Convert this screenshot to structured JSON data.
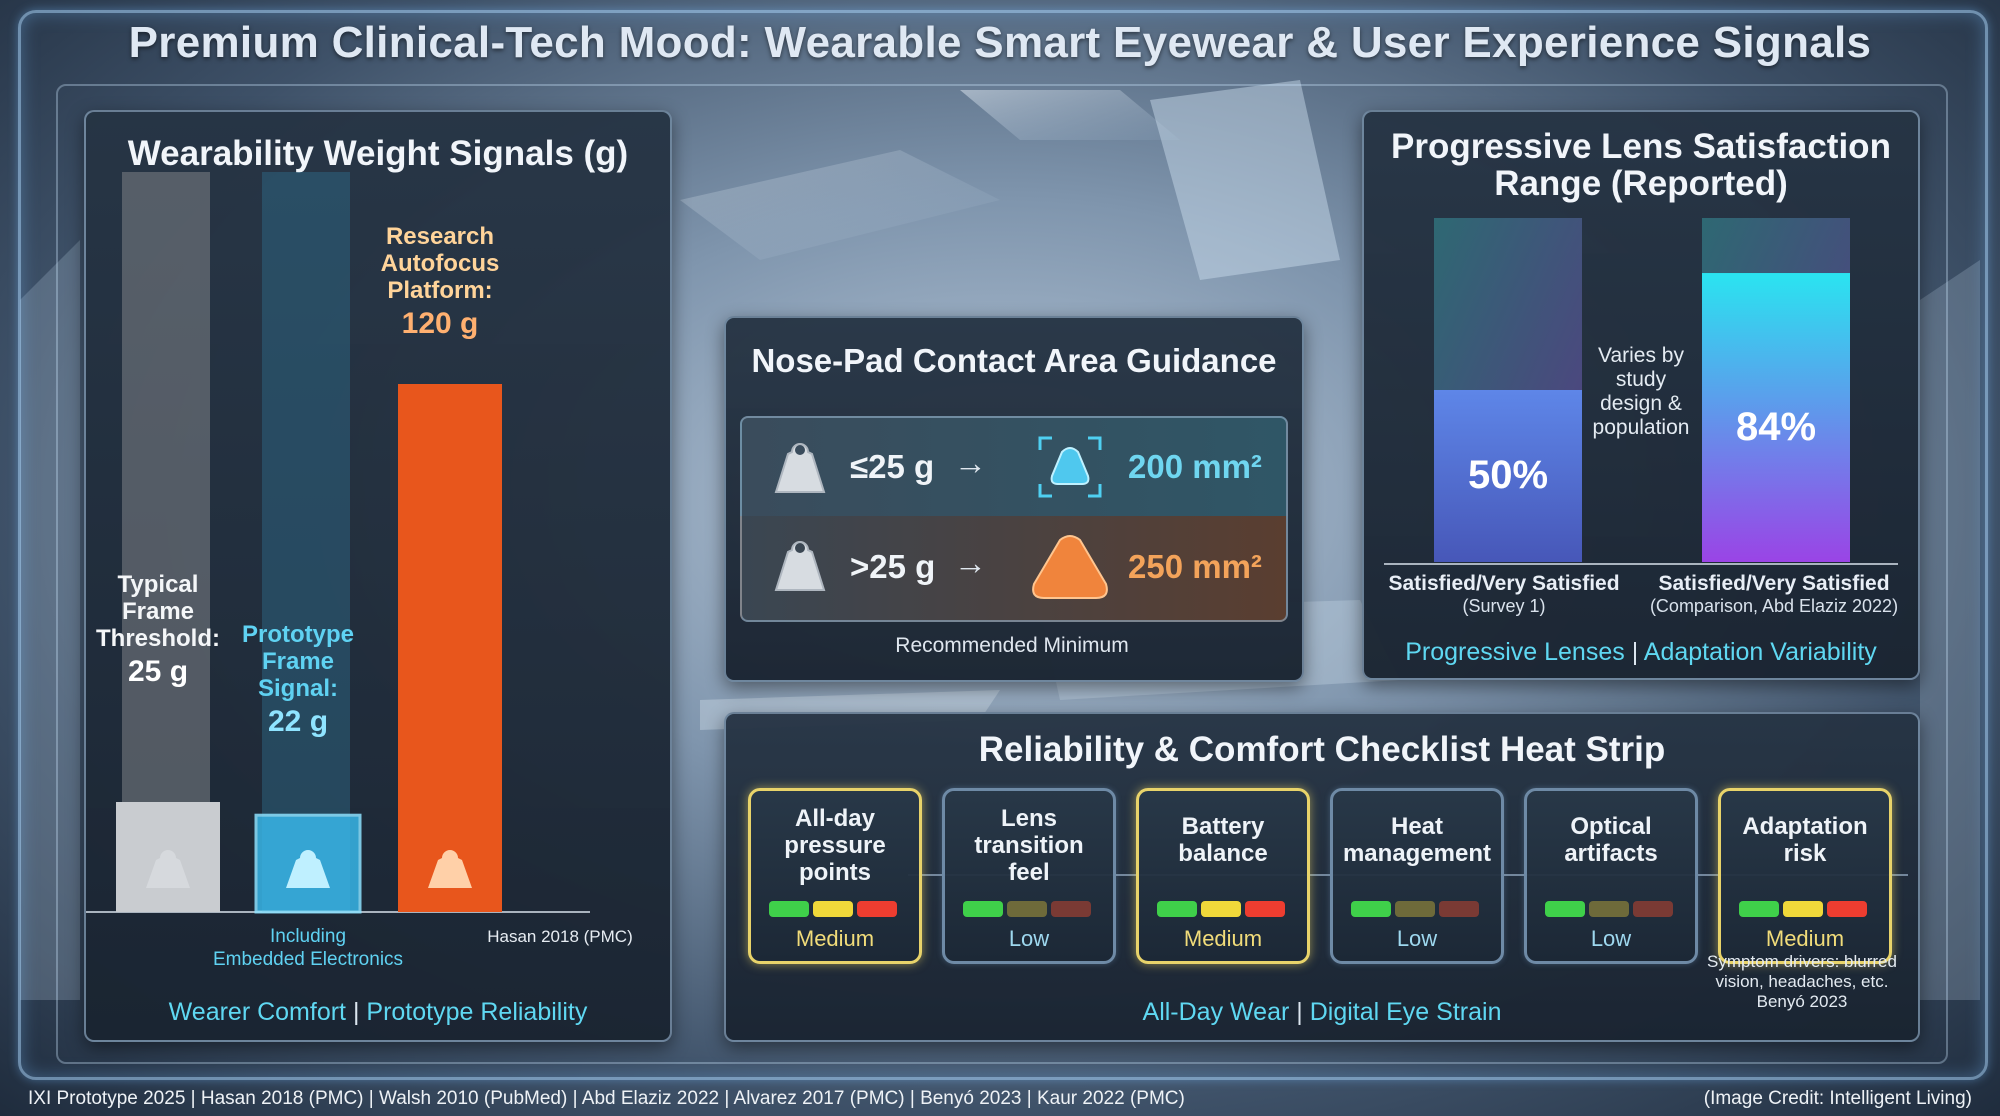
{
  "title": "Premium Clinical-Tech Mood: Wearable Smart Eyewear & User Experience Signals",
  "weight_panel": {
    "title": "Wearability Weight Signals (g)",
    "footer_left": "Wearer Comfort",
    "footer_sep": "|",
    "footer_right": "Prototype Reliability",
    "colors": {
      "threshold": "#c9ccd0",
      "prototype": "#38b6e8",
      "research": "#e8561c"
    }
  },
  "chart_data": {
    "type": "bar",
    "title": "Wearability Weight Signals (g)",
    "categories": [
      "Typical Frame Threshold:",
      "Prototype Frame Signal:",
      "Research Autofocus Platform:"
    ],
    "values": [
      25,
      22,
      120
    ],
    "value_labels": [
      "25 g",
      "22 g",
      "120 g"
    ],
    "notes": [
      "",
      "Including Embedded Electronics",
      "Hasan 2018 (PMC)"
    ],
    "ylim": [
      0,
      150
    ]
  },
  "nose_pad": {
    "title": "Nose-Pad Contact Area Guidance",
    "rows": [
      {
        "weight": "≤25 g",
        "arrow": "→",
        "area": "200 mm²",
        "color": "#6fd6f0"
      },
      {
        "weight": ">25 g",
        "arrow": "→",
        "area": "250 mm²",
        "color": "#f3a35a"
      }
    ],
    "caption": "Recommended Minimum"
  },
  "satisfaction": {
    "title_line1": "Progressive Lens Satisfaction",
    "title_line2": "Range (Reported)",
    "bars": [
      {
        "value": 50,
        "label": "50%",
        "caption": "Satisfied/Very Satisfied",
        "sub": "(Survey 1)"
      },
      {
        "value": 84,
        "label": "84%",
        "caption": "Satisfied/Very Satisfied",
        "sub": "(Comparison, Abd Elaziz 2022)"
      }
    ],
    "middle_note": [
      "Varies by",
      "study",
      "design &",
      "population"
    ],
    "footer_left": "Progressive Lenses",
    "footer_sep": "|",
    "footer_right": "Adaptation Variability"
  },
  "heat_strip": {
    "title": "Reliability & Comfort Checklist Heat Strip",
    "items": [
      {
        "label": [
          "All-day",
          "pressure",
          "points"
        ],
        "level": "Medium"
      },
      {
        "label": [
          "Lens",
          "transition",
          "feel"
        ],
        "level": "Low"
      },
      {
        "label": [
          "Battery",
          "balance"
        ],
        "level": "Medium"
      },
      {
        "label": [
          "Heat",
          "management"
        ],
        "level": "Low"
      },
      {
        "label": [
          "Optical",
          "artifacts"
        ],
        "level": "Low"
      },
      {
        "label": [
          "Adaptation",
          "risk"
        ],
        "level": "Medium"
      }
    ],
    "note": [
      "Symptom drivers: blurred",
      "vision, headaches, etc.",
      "Benyó 2023"
    ],
    "footer_left": "All-Day Wear",
    "footer_sep": "|",
    "footer_right": "Digital Eye Strain"
  },
  "sources": "IXI Prototype 2025 | Hasan 2018 (PMC) | Walsh 2010 (PubMed) | Abd Elaziz 2022 | Alvarez 2017 (PMC) | Benyó 2023 | Kaur 2022 (PMC)",
  "credit": "(Image Credit: Intelligent Living)"
}
